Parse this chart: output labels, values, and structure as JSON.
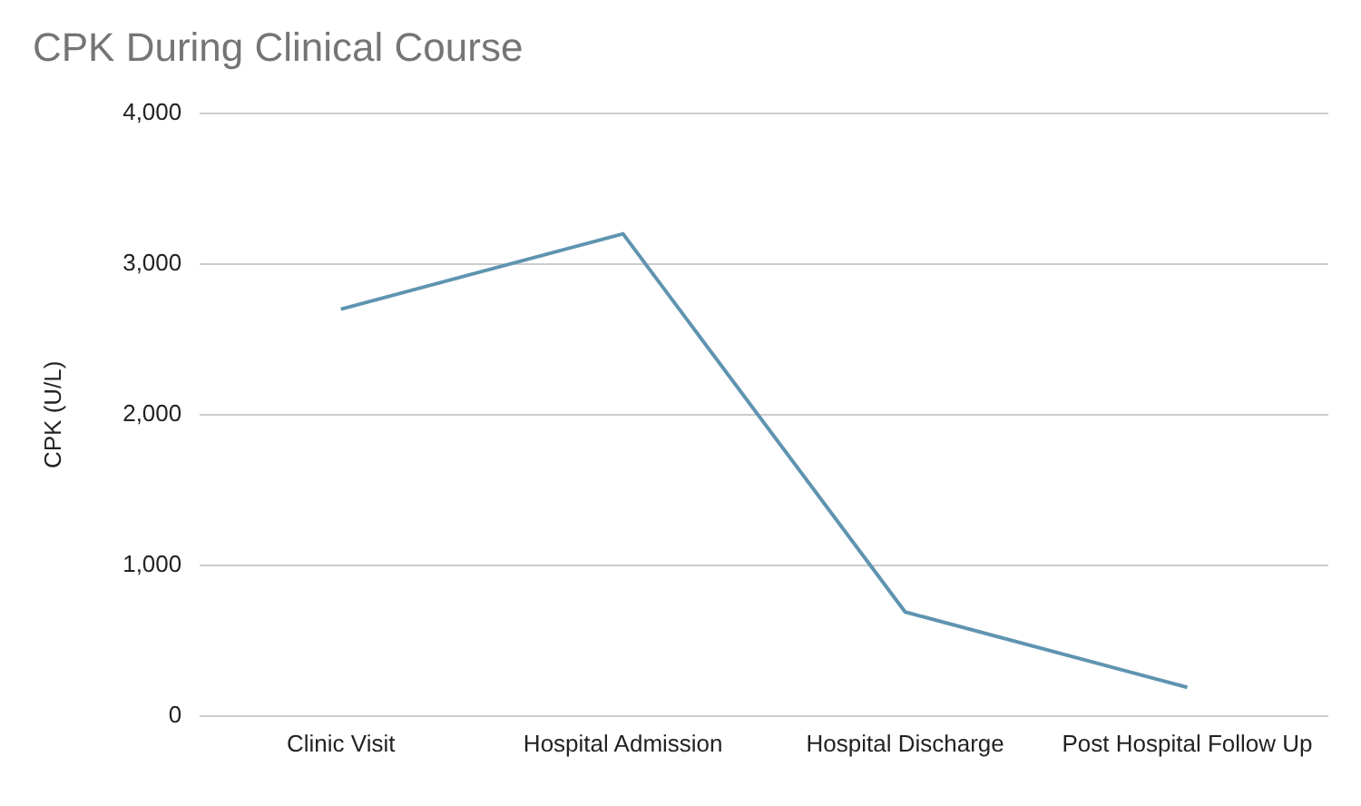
{
  "chart_data": {
    "type": "line",
    "title": "CPK During Clinical Course",
    "ylabel": "CPK (U/L)",
    "categories": [
      "Clinic Visit",
      "Hospital Admission",
      "Hospital Discharge",
      "Post Hospital Follow Up"
    ],
    "series": [
      {
        "color": "#5f94b0",
        "values": [
          2700,
          3200,
          690,
          190
        ]
      }
    ],
    "ylim": [
      0,
      4000
    ],
    "yticks": [
      {
        "value": 0,
        "label": "0"
      },
      {
        "value": 1000,
        "label": "1,000"
      },
      {
        "value": 2000,
        "label": "2,000"
      },
      {
        "value": 3000,
        "label": "3,000"
      },
      {
        "value": 4000,
        "label": "4,000"
      }
    ],
    "grid": "y",
    "legend": false,
    "marker": "none",
    "line_style": "solid"
  }
}
